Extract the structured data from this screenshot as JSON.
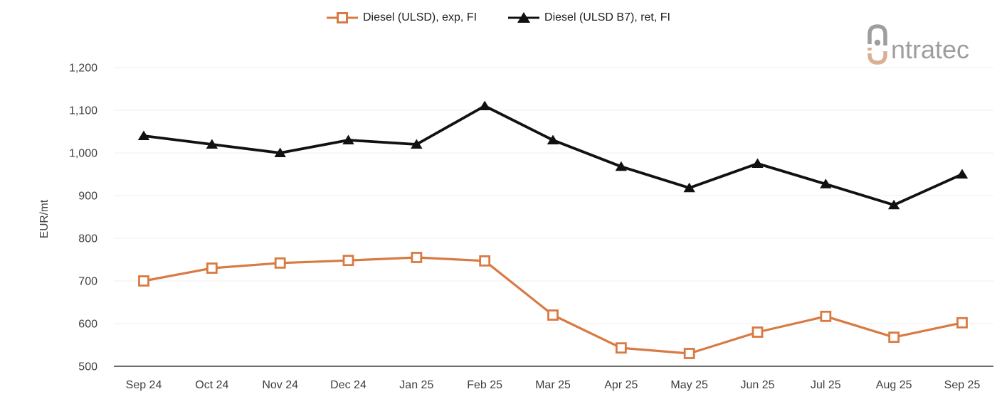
{
  "legend": {
    "items": [
      {
        "label": "Diesel (ULSD), exp, FI"
      },
      {
        "label": "Diesel (ULSD B7), ret, FI"
      }
    ]
  },
  "logo": {
    "brand": "intratec",
    "visible_text": "ntratec",
    "gray": "#9e9e9e",
    "tan": "#d9b091"
  },
  "chart_data": {
    "type": "line",
    "title": "",
    "xlabel": "",
    "ylabel": "EUR/mt",
    "categories": [
      "Sep 24",
      "Oct 24",
      "Nov 24",
      "Dec 24",
      "Jan 25",
      "Feb 25",
      "Mar 25",
      "Apr 25",
      "May 25",
      "Jun 25",
      "Jul 25",
      "Aug 25",
      "Sep 25"
    ],
    "series": [
      {
        "name": "Diesel (ULSD), exp, FI",
        "color": "#d87a42",
        "marker": "square",
        "values": [
          700,
          730,
          742,
          748,
          755,
          747,
          620,
          543,
          530,
          580,
          617,
          568,
          602
        ]
      },
      {
        "name": "Diesel (ULSD B7), ret, FI",
        "color": "#111111",
        "marker": "triangle",
        "values": [
          1040,
          1020,
          1000,
          1030,
          1020,
          1110,
          1030,
          968,
          918,
          975,
          927,
          878,
          950
        ]
      }
    ],
    "ylim": [
      500,
      1200
    ],
    "ytick_step": 100,
    "grid": true,
    "legend_position": "top-center",
    "grid_color": "#efefef",
    "axis_color": "#6b6b6b",
    "tick_label_color": "#404040"
  }
}
